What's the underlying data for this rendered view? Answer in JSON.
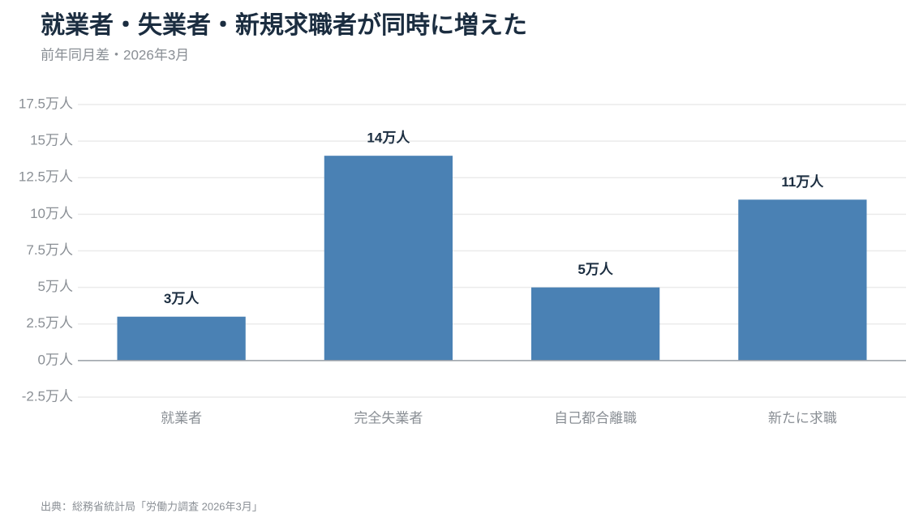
{
  "chart_data": {
    "type": "bar",
    "title": "就業者・失業者・新規求職者が同時に増えた",
    "subtitle": "前年同月差・2026年3月",
    "source": "出典：総務省統計局「労働力調査 2026年3月」",
    "categories": [
      "就業者",
      "完全失業者",
      "自己都合離職",
      "新たに求職"
    ],
    "values": [
      3,
      14,
      5,
      11
    ],
    "value_labels": [
      "3万人",
      "14万人",
      "5万人",
      "11万人"
    ],
    "color": "#4a81b4",
    "ylim": [
      -2.5,
      17.5
    ],
    "yticks": [
      {
        "value": -2.5,
        "label": "-2.5万人"
      },
      {
        "value": 0,
        "label": "0万人"
      },
      {
        "value": 2.5,
        "label": "2.5万人"
      },
      {
        "value": 5,
        "label": "5万人"
      },
      {
        "value": 7.5,
        "label": "7.5万人"
      },
      {
        "value": 10,
        "label": "10万人"
      },
      {
        "value": 12.5,
        "label": "12.5万人"
      },
      {
        "value": 15,
        "label": "15万人"
      },
      {
        "value": 17.5,
        "label": "17.5万人"
      }
    ],
    "grid": true
  }
}
